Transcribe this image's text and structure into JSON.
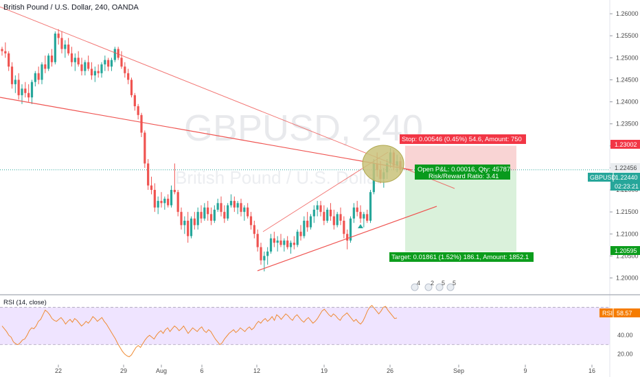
{
  "header": {
    "title": "British Pound / U.S. Dollar, 240, OANDA"
  },
  "watermark": {
    "symbol": "GBPUSD, 240",
    "name": "British Pound / U.S. Dollar"
  },
  "colors": {
    "up": "#26a69a",
    "down": "#ef5350",
    "trendline": "#ef5350",
    "stop_zone": "#f7c5c6",
    "target_zone": "#cdeccf",
    "stop_tag": "#f23645",
    "target_tag": "#0c9d1c",
    "pnl_box": "#089a1d",
    "price_tag": "#26a69a",
    "circle": "#c8c17a",
    "rsi_line": "#ef8a32",
    "rsi_band": "#ebddff",
    "rsi_tag": "#f57c00"
  },
  "chart_data": [
    {
      "type": "candlestick",
      "title": "British Pound / U.S. Dollar, 240, OANDA",
      "xlabel": "",
      "ylabel": "",
      "x_tick_labels": [
        "22",
        "29",
        "Aug",
        "6",
        "12",
        "19",
        "26",
        "Sep",
        "9",
        "16"
      ],
      "y_tick_labels": [
        "1.26000",
        "1.25500",
        "1.25000",
        "1.24500",
        "1.24000",
        "1.23500",
        "1.23000",
        "1.22500",
        "1.22000",
        "1.21500",
        "1.21000",
        "1.20500",
        "1.20000"
      ],
      "ylim": [
        1.1965,
        1.2625
      ],
      "grid": false,
      "series": [
        {
          "name": "GBPUSD",
          "ohlc": [
            [
              1.252,
              1.2525,
              1.2505,
              1.2515
            ],
            [
              1.2515,
              1.2535,
              1.25,
              1.251
            ],
            [
              1.251,
              1.2515,
              1.247,
              1.248
            ],
            [
              1.248,
              1.249,
              1.243,
              1.244
            ],
            [
              1.244,
              1.246,
              1.242,
              1.245
            ],
            [
              1.245,
              1.2465,
              1.2405,
              1.2415
            ],
            [
              1.2415,
              1.244,
              1.2395,
              1.243
            ],
            [
              1.243,
              1.2445,
              1.241,
              1.242
            ],
            [
              1.242,
              1.244,
              1.24,
              1.241
            ],
            [
              1.241,
              1.245,
              1.2395,
              1.2445
            ],
            [
              1.2445,
              1.247,
              1.2435,
              1.2465
            ],
            [
              1.2465,
              1.248,
              1.244,
              1.245
            ],
            [
              1.245,
              1.249,
              1.244,
              1.2485
            ],
            [
              1.2485,
              1.2505,
              1.2465,
              1.2475
            ],
            [
              1.2475,
              1.251,
              1.247,
              1.2505
            ],
            [
              1.2505,
              1.252,
              1.248,
              1.249
            ],
            [
              1.249,
              1.256,
              1.2485,
              1.2555
            ],
            [
              1.2555,
              1.2565,
              1.253,
              1.2545
            ],
            [
              1.2545,
              1.256,
              1.251,
              1.252
            ],
            [
              1.252,
              1.254,
              1.25,
              1.253
            ],
            [
              1.253,
              1.2545,
              1.2505,
              1.251
            ],
            [
              1.251,
              1.2525,
              1.248,
              1.249
            ],
            [
              1.249,
              1.251,
              1.247,
              1.25
            ],
            [
              1.25,
              1.2515,
              1.248,
              1.2485
            ],
            [
              1.2485,
              1.25,
              1.246,
              1.247
            ],
            [
              1.247,
              1.2495,
              1.246,
              1.249
            ],
            [
              1.249,
              1.2505,
              1.247,
              1.2475
            ],
            [
              1.2475,
              1.249,
              1.245,
              1.246
            ],
            [
              1.246,
              1.248,
              1.2445,
              1.247
            ],
            [
              1.247,
              1.2485,
              1.2455,
              1.2465
            ],
            [
              1.2465,
              1.249,
              1.2455,
              1.2485
            ],
            [
              1.2485,
              1.2505,
              1.247,
              1.2495
            ],
            [
              1.2495,
              1.25,
              1.247,
              1.248
            ],
            [
              1.248,
              1.25,
              1.247,
              1.2495
            ],
            [
              1.2495,
              1.2525,
              1.249,
              1.252
            ],
            [
              1.252,
              1.2525,
              1.2495,
              1.25
            ],
            [
              1.25,
              1.2515,
              1.2475,
              1.248
            ],
            [
              1.248,
              1.249,
              1.2455,
              1.2465
            ],
            [
              1.2465,
              1.2475,
              1.244,
              1.245
            ],
            [
              1.245,
              1.2455,
              1.241,
              1.2415
            ],
            [
              1.2415,
              1.242,
              1.238,
              1.239
            ],
            [
              1.239,
              1.2395,
              1.236,
              1.237
            ],
            [
              1.237,
              1.2375,
              1.232,
              1.233
            ],
            [
              1.233,
              1.2335,
              1.225,
              1.226
            ],
            [
              1.226,
              1.227,
              1.22,
              1.221
            ],
            [
              1.221,
              1.223,
              1.219,
              1.22
            ],
            [
              1.22,
              1.2215,
              1.215,
              1.216
            ],
            [
              1.216,
              1.2185,
              1.2145,
              1.2175
            ],
            [
              1.2175,
              1.2195,
              1.216,
              1.217
            ],
            [
              1.217,
              1.2185,
              1.2155,
              1.218
            ],
            [
              1.218,
              1.219,
              1.216,
              1.2165
            ],
            [
              1.2165,
              1.221,
              1.216,
              1.22
            ],
            [
              1.22,
              1.226,
              1.219,
              1.2195
            ],
            [
              1.2195,
              1.22,
              1.214,
              1.215
            ],
            [
              1.215,
              1.216,
              1.211,
              1.212
            ],
            [
              1.212,
              1.214,
              1.21,
              1.213
            ],
            [
              1.213,
              1.215,
              1.208,
              1.2095
            ],
            [
              1.2095,
              1.214,
              1.209,
              1.2135
            ],
            [
              1.2135,
              1.215,
              1.211,
              1.212
            ],
            [
              1.212,
              1.216,
              1.211,
              1.215
            ],
            [
              1.215,
              1.2165,
              1.2125,
              1.2135
            ],
            [
              1.2135,
              1.217,
              1.213,
              1.216
            ],
            [
              1.216,
              1.2175,
              1.213,
              1.2145
            ],
            [
              1.2145,
              1.216,
              1.212,
              1.213
            ],
            [
              1.213,
              1.2165,
              1.2125,
              1.2155
            ],
            [
              1.2155,
              1.218,
              1.215,
              1.217
            ],
            [
              1.217,
              1.2185,
              1.214,
              1.215
            ],
            [
              1.215,
              1.2165,
              1.2125,
              1.2135
            ],
            [
              1.2135,
              1.217,
              1.213,
              1.2165
            ],
            [
              1.2165,
              1.219,
              1.216,
              1.2175
            ],
            [
              1.2175,
              1.2185,
              1.215,
              1.216
            ],
            [
              1.216,
              1.2175,
              1.2145,
              1.217
            ],
            [
              1.217,
              1.218,
              1.214,
              1.215
            ],
            [
              1.215,
              1.2165,
              1.213,
              1.216
            ],
            [
              1.216,
              1.217,
              1.2135,
              1.214
            ],
            [
              1.214,
              1.215,
              1.211,
              1.212
            ],
            [
              1.212,
              1.213,
              1.209,
              1.21
            ],
            [
              1.21,
              1.211,
              1.206,
              1.207
            ],
            [
              1.207,
              1.208,
              1.203,
              1.204
            ],
            [
              1.204,
              1.206,
              1.2015,
              1.205
            ],
            [
              1.205,
              1.207,
              1.203,
              1.206
            ],
            [
              1.206,
              1.21,
              1.2055,
              1.209
            ],
            [
              1.209,
              1.2105,
              1.207,
              1.208
            ],
            [
              1.208,
              1.2095,
              1.206,
              1.2085
            ],
            [
              1.2085,
              1.21,
              1.207,
              1.2075
            ],
            [
              1.2075,
              1.209,
              1.206,
              1.2085
            ],
            [
              1.2085,
              1.2095,
              1.2065,
              1.207
            ],
            [
              1.207,
              1.2085,
              1.2055,
              1.208
            ],
            [
              1.208,
              1.2095,
              1.2065,
              1.2075
            ],
            [
              1.2075,
              1.211,
              1.207,
              1.2105
            ],
            [
              1.2105,
              1.212,
              1.2085,
              1.2095
            ],
            [
              1.2095,
              1.214,
              1.209,
              1.213
            ],
            [
              1.213,
              1.215,
              1.2105,
              1.2115
            ],
            [
              1.2115,
              1.2145,
              1.211,
              1.214
            ],
            [
              1.214,
              1.2165,
              1.2125,
              1.2155
            ],
            [
              1.2155,
              1.2175,
              1.214,
              1.2165
            ],
            [
              1.2165,
              1.2175,
              1.214,
              1.215
            ],
            [
              1.215,
              1.2165,
              1.212,
              1.213
            ],
            [
              1.213,
              1.216,
              1.2125,
              1.2155
            ],
            [
              1.2155,
              1.217,
              1.213,
              1.214
            ],
            [
              1.214,
              1.2155,
              1.211,
              1.212
            ],
            [
              1.212,
              1.215,
              1.2115,
              1.2145
            ],
            [
              1.2145,
              1.216,
              1.212,
              1.213
            ],
            [
              1.213,
              1.214,
              1.209,
              1.21
            ],
            [
              1.21,
              1.211,
              1.2065,
              1.2085
            ],
            [
              1.2085,
              1.214,
              1.208,
              1.2135
            ],
            [
              1.2135,
              1.217,
              1.2125,
              1.216
            ],
            [
              1.216,
              1.2175,
              1.214,
              1.215
            ],
            [
              1.215,
              1.2165,
              1.2125,
              1.2135
            ],
            [
              1.2135,
              1.215,
              1.2115,
              1.2145
            ],
            [
              1.2145,
              1.2155,
              1.2125,
              1.213
            ],
            [
              1.213,
              1.22,
              1.2125,
              1.2195
            ],
            [
              1.2195,
              1.227,
              1.219,
              1.226
            ],
            [
              1.226,
              1.2285,
              1.223,
              1.2245
            ],
            [
              1.2245,
              1.2265,
              1.2215,
              1.2225
            ],
            [
              1.2225,
              1.225,
              1.2205,
              1.224
            ],
            [
              1.224,
              1.227,
              1.2225,
              1.226
            ],
            [
              1.226,
              1.2295,
              1.225,
              1.2285
            ],
            [
              1.2285,
              1.229,
              1.2245,
              1.2255
            ],
            [
              1.2255,
              1.228,
              1.224,
              1.2265
            ],
            [
              1.2265,
              1.2275,
              1.2235,
              1.2246
            ]
          ]
        }
      ],
      "annotations": {
        "stop_label": "Stop: 0.00546 (0.45%) 54.6, Amount: 750",
        "target_label": "Target: 0.01861 (1.52%) 186.1, Amount: 1852.1",
        "pnl_label": "Open P&L: 0.00016, Qty: 45787",
        "rr_label": "Risk/Reward Ratio: 3.41",
        "entry_price": 1.2244,
        "stop_price": 1.23002,
        "target_price": 1.20595,
        "current_price": 1.22456,
        "stop_tag": "1.23002",
        "target_tag": "1.20595",
        "current_tag": "1.22456",
        "symbol_tag": "GBPUSD",
        "symbol_price_tag": "1.22440",
        "countdown_tag": "02:23:21",
        "event_icon_labels": [
          "4",
          "2",
          "5",
          "5"
        ]
      }
    },
    {
      "type": "line",
      "title": "RSI (14, close)",
      "xlabel": "",
      "ylabel": "",
      "y_tick_labels": [
        "40.00",
        "20.00"
      ],
      "ylim": [
        10,
        82
      ],
      "band": [
        30,
        70
      ],
      "series": [
        {
          "name": "RSI",
          "values": [
            50,
            47,
            44,
            40,
            38,
            33,
            31,
            30,
            32,
            35,
            36,
            40,
            45,
            48,
            47,
            50,
            55,
            57,
            62,
            67,
            65,
            62,
            58,
            56,
            55,
            57,
            59,
            56,
            52,
            55,
            57,
            54,
            58,
            56,
            53,
            50,
            52,
            55,
            53,
            56,
            60,
            58,
            55,
            57,
            59,
            55,
            52,
            48,
            44,
            40,
            36,
            31,
            27,
            23,
            20,
            18,
            17,
            19,
            23,
            27,
            29,
            27,
            31,
            35,
            38,
            40,
            38,
            36,
            40,
            43,
            45,
            42,
            46,
            48,
            44,
            47,
            50,
            48,
            45,
            47,
            50,
            46,
            42,
            45,
            48,
            46,
            44,
            47,
            49,
            45,
            43,
            46,
            44,
            40,
            36,
            33,
            30,
            32,
            36,
            39,
            42,
            44,
            46,
            43,
            45,
            48,
            46,
            44,
            47,
            49,
            46,
            48,
            52,
            55,
            53,
            56,
            58,
            55,
            57,
            60,
            56,
            62,
            60,
            57,
            60,
            63,
            61,
            58,
            56,
            60,
            62,
            59,
            56,
            54,
            57,
            59,
            56,
            53,
            55,
            58,
            62,
            66,
            68,
            65,
            62,
            60,
            63,
            61,
            58,
            56,
            60,
            62,
            64,
            61,
            58,
            55,
            57,
            54,
            52,
            55,
            60,
            66,
            70,
            72,
            69,
            66,
            63,
            66,
            70,
            71,
            67,
            64,
            61,
            58,
            58.57
          ]
        }
      ],
      "current_tag": "58.57",
      "rsi_tag_label": "RSI"
    }
  ]
}
